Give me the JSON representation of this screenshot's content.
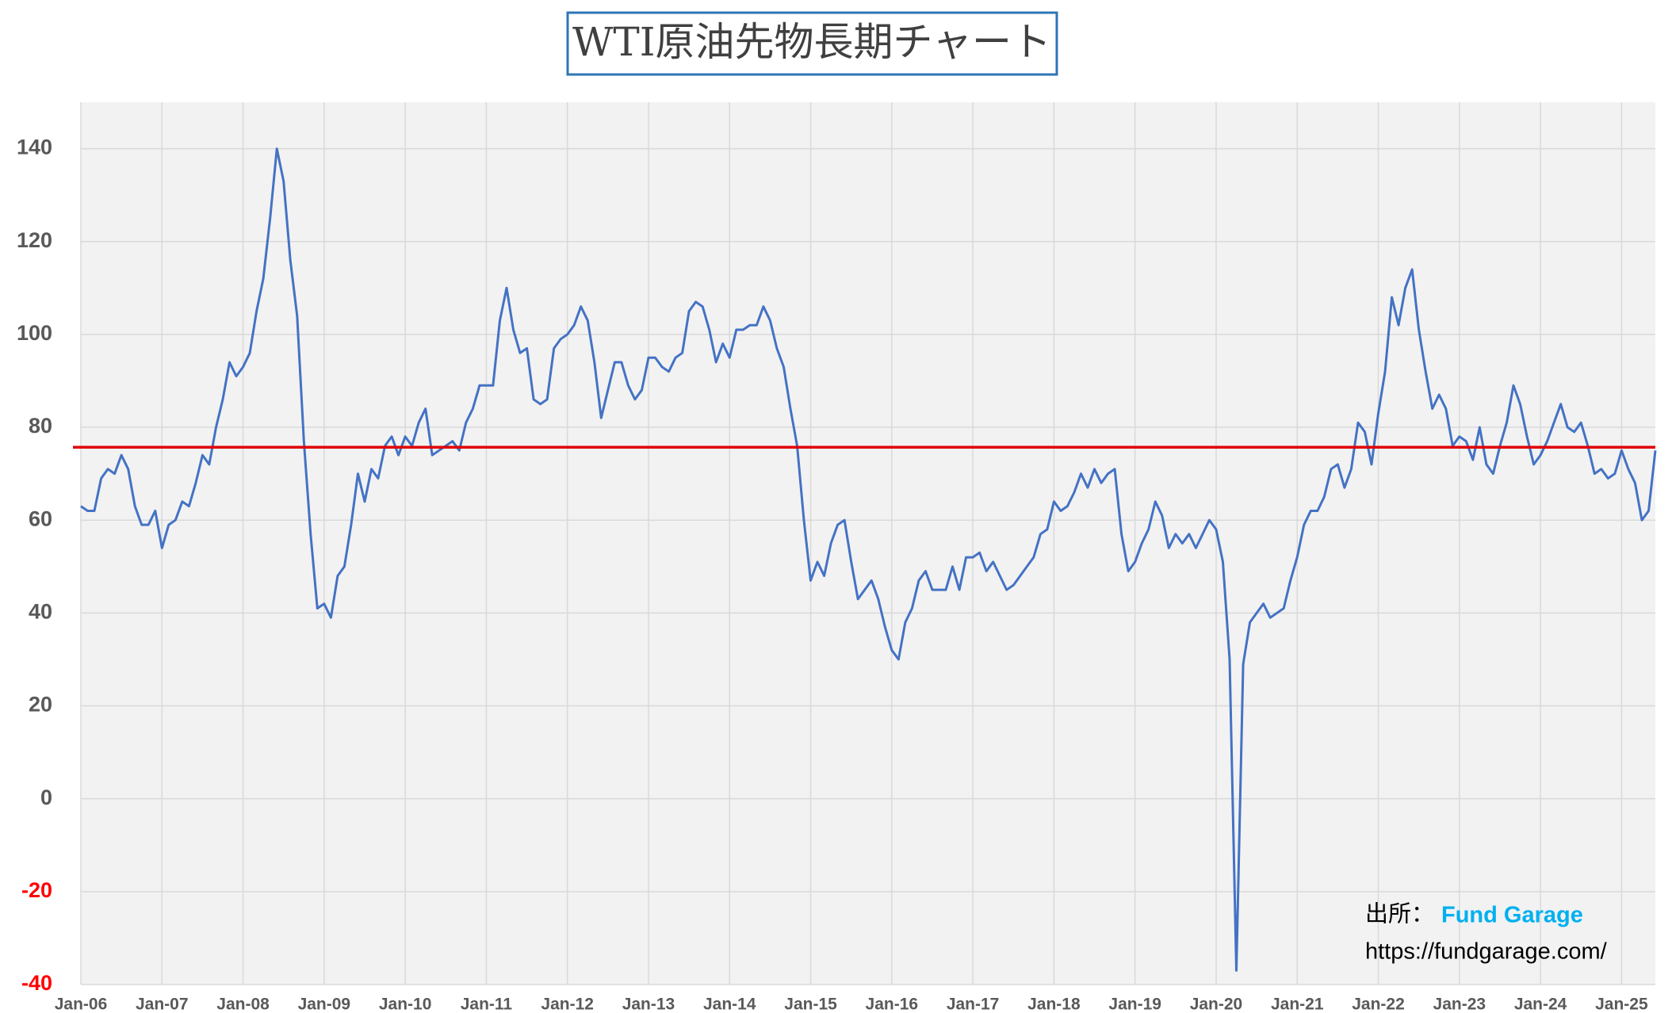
{
  "chart_data": {
    "type": "line",
    "title": "WTI原油先物長期チャート",
    "source_label": "出所：",
    "source_name": "Fund Garage",
    "source_url": "https://fundgarage.com/",
    "categories": [
      "Jan-06",
      null,
      null,
      null,
      null,
      null,
      null,
      null,
      null,
      null,
      null,
      null,
      "Jan-07",
      null,
      null,
      null,
      null,
      null,
      null,
      null,
      null,
      null,
      null,
      null,
      "Jan-08",
      null,
      null,
      null,
      null,
      null,
      null,
      null,
      null,
      null,
      null,
      null,
      "Jan-09",
      null,
      null,
      null,
      null,
      null,
      null,
      null,
      null,
      null,
      null,
      null,
      "Jan-10",
      null,
      null,
      null,
      null,
      null,
      null,
      null,
      null,
      null,
      null,
      null,
      "Jan-11",
      null,
      null,
      null,
      null,
      null,
      null,
      null,
      null,
      null,
      null,
      null,
      "Jan-12",
      null,
      null,
      null,
      null,
      null,
      null,
      null,
      null,
      null,
      null,
      null,
      "Jan-13",
      null,
      null,
      null,
      null,
      null,
      null,
      null,
      null,
      null,
      null,
      null,
      "Jan-14",
      null,
      null,
      null,
      null,
      null,
      null,
      null,
      null,
      null,
      null,
      null,
      "Jan-15",
      null,
      null,
      null,
      null,
      null,
      null,
      null,
      null,
      null,
      null,
      null,
      "Jan-16",
      null,
      null,
      null,
      null,
      null,
      null,
      null,
      null,
      null,
      null,
      null,
      "Jan-17",
      null,
      null,
      null,
      null,
      null,
      null,
      null,
      null,
      null,
      null,
      null,
      "Jan-18",
      null,
      null,
      null,
      null,
      null,
      null,
      null,
      null,
      null,
      null,
      null,
      "Jan-19",
      null,
      null,
      null,
      null,
      null,
      null,
      null,
      null,
      null,
      null,
      null,
      "Jan-20",
      null,
      null,
      null,
      null,
      null,
      null,
      null,
      null,
      null,
      null,
      null,
      "Jan-21",
      null,
      null,
      null,
      null,
      null,
      null,
      null,
      null,
      null,
      null,
      null,
      "Jan-22",
      null,
      null,
      null,
      null,
      null,
      null,
      null,
      null,
      null,
      null,
      null,
      "Jan-23",
      null,
      null,
      null,
      null,
      null,
      null,
      null,
      null,
      null,
      null,
      null,
      "Jan-24",
      null,
      null,
      null,
      null,
      null,
      null,
      null,
      null,
      null,
      null,
      null,
      "Jan-25",
      null,
      null,
      null,
      null,
      null
    ],
    "series": [
      {
        "name": "WTI",
        "color": "#4472c4",
        "values": [
          63,
          62,
          62,
          69,
          71,
          70,
          74,
          71,
          63,
          59,
          59,
          62,
          54,
          59,
          60,
          64,
          63,
          68,
          74,
          72,
          80,
          86,
          94,
          91,
          93,
          96,
          105,
          112,
          125,
          140,
          133,
          116,
          104,
          77,
          57,
          41,
          42,
          39,
          48,
          50,
          59,
          70,
          64,
          71,
          69,
          76,
          78,
          74,
          78,
          76,
          81,
          84,
          74,
          75,
          76,
          77,
          75,
          81,
          84,
          89,
          89,
          89,
          103,
          110,
          101,
          96,
          97,
          86,
          85,
          86,
          97,
          99,
          100,
          102,
          106,
          103,
          94,
          82,
          88,
          94,
          94,
          89,
          86,
          88,
          95,
          95,
          93,
          92,
          95,
          96,
          105,
          107,
          106,
          101,
          94,
          98,
          95,
          101,
          101,
          102,
          102,
          106,
          103,
          97,
          93,
          84,
          76,
          60,
          47,
          51,
          48,
          55,
          59,
          60,
          51,
          43,
          45,
          47,
          43,
          37,
          32,
          30,
          38,
          41,
          47,
          49,
          45,
          45,
          45,
          50,
          45,
          52,
          52,
          53,
          49,
          51,
          48,
          45,
          46,
          48,
          50,
          52,
          57,
          58,
          64,
          62,
          63,
          66,
          70,
          67,
          71,
          68,
          70,
          71,
          57,
          49,
          51,
          55,
          58,
          64,
          61,
          54,
          57,
          55,
          57,
          54,
          57,
          60,
          58,
          51,
          30,
          -37,
          29,
          38,
          40,
          42,
          39,
          40,
          41,
          47,
          52,
          59,
          62,
          62,
          65,
          71,
          72,
          67,
          71,
          81,
          79,
          72,
          83,
          92,
          108,
          102,
          110,
          114,
          101,
          92,
          84,
          87,
          84,
          76,
          78,
          77,
          73,
          80,
          72,
          70,
          76,
          81,
          89,
          85,
          78,
          72,
          74,
          77,
          81,
          85,
          80,
          79,
          81,
          76,
          70,
          71,
          69,
          70,
          75,
          71,
          68,
          60,
          62,
          75
        ]
      }
    ],
    "ylim": [
      -40,
      150
    ],
    "yticks": [
      -40,
      -20,
      0,
      20,
      40,
      60,
      80,
      100,
      120,
      140
    ],
    "grid": true,
    "negative_tick_color": "#ff0000",
    "reference_line": {
      "value": 75.7,
      "color": "#e00000"
    }
  }
}
